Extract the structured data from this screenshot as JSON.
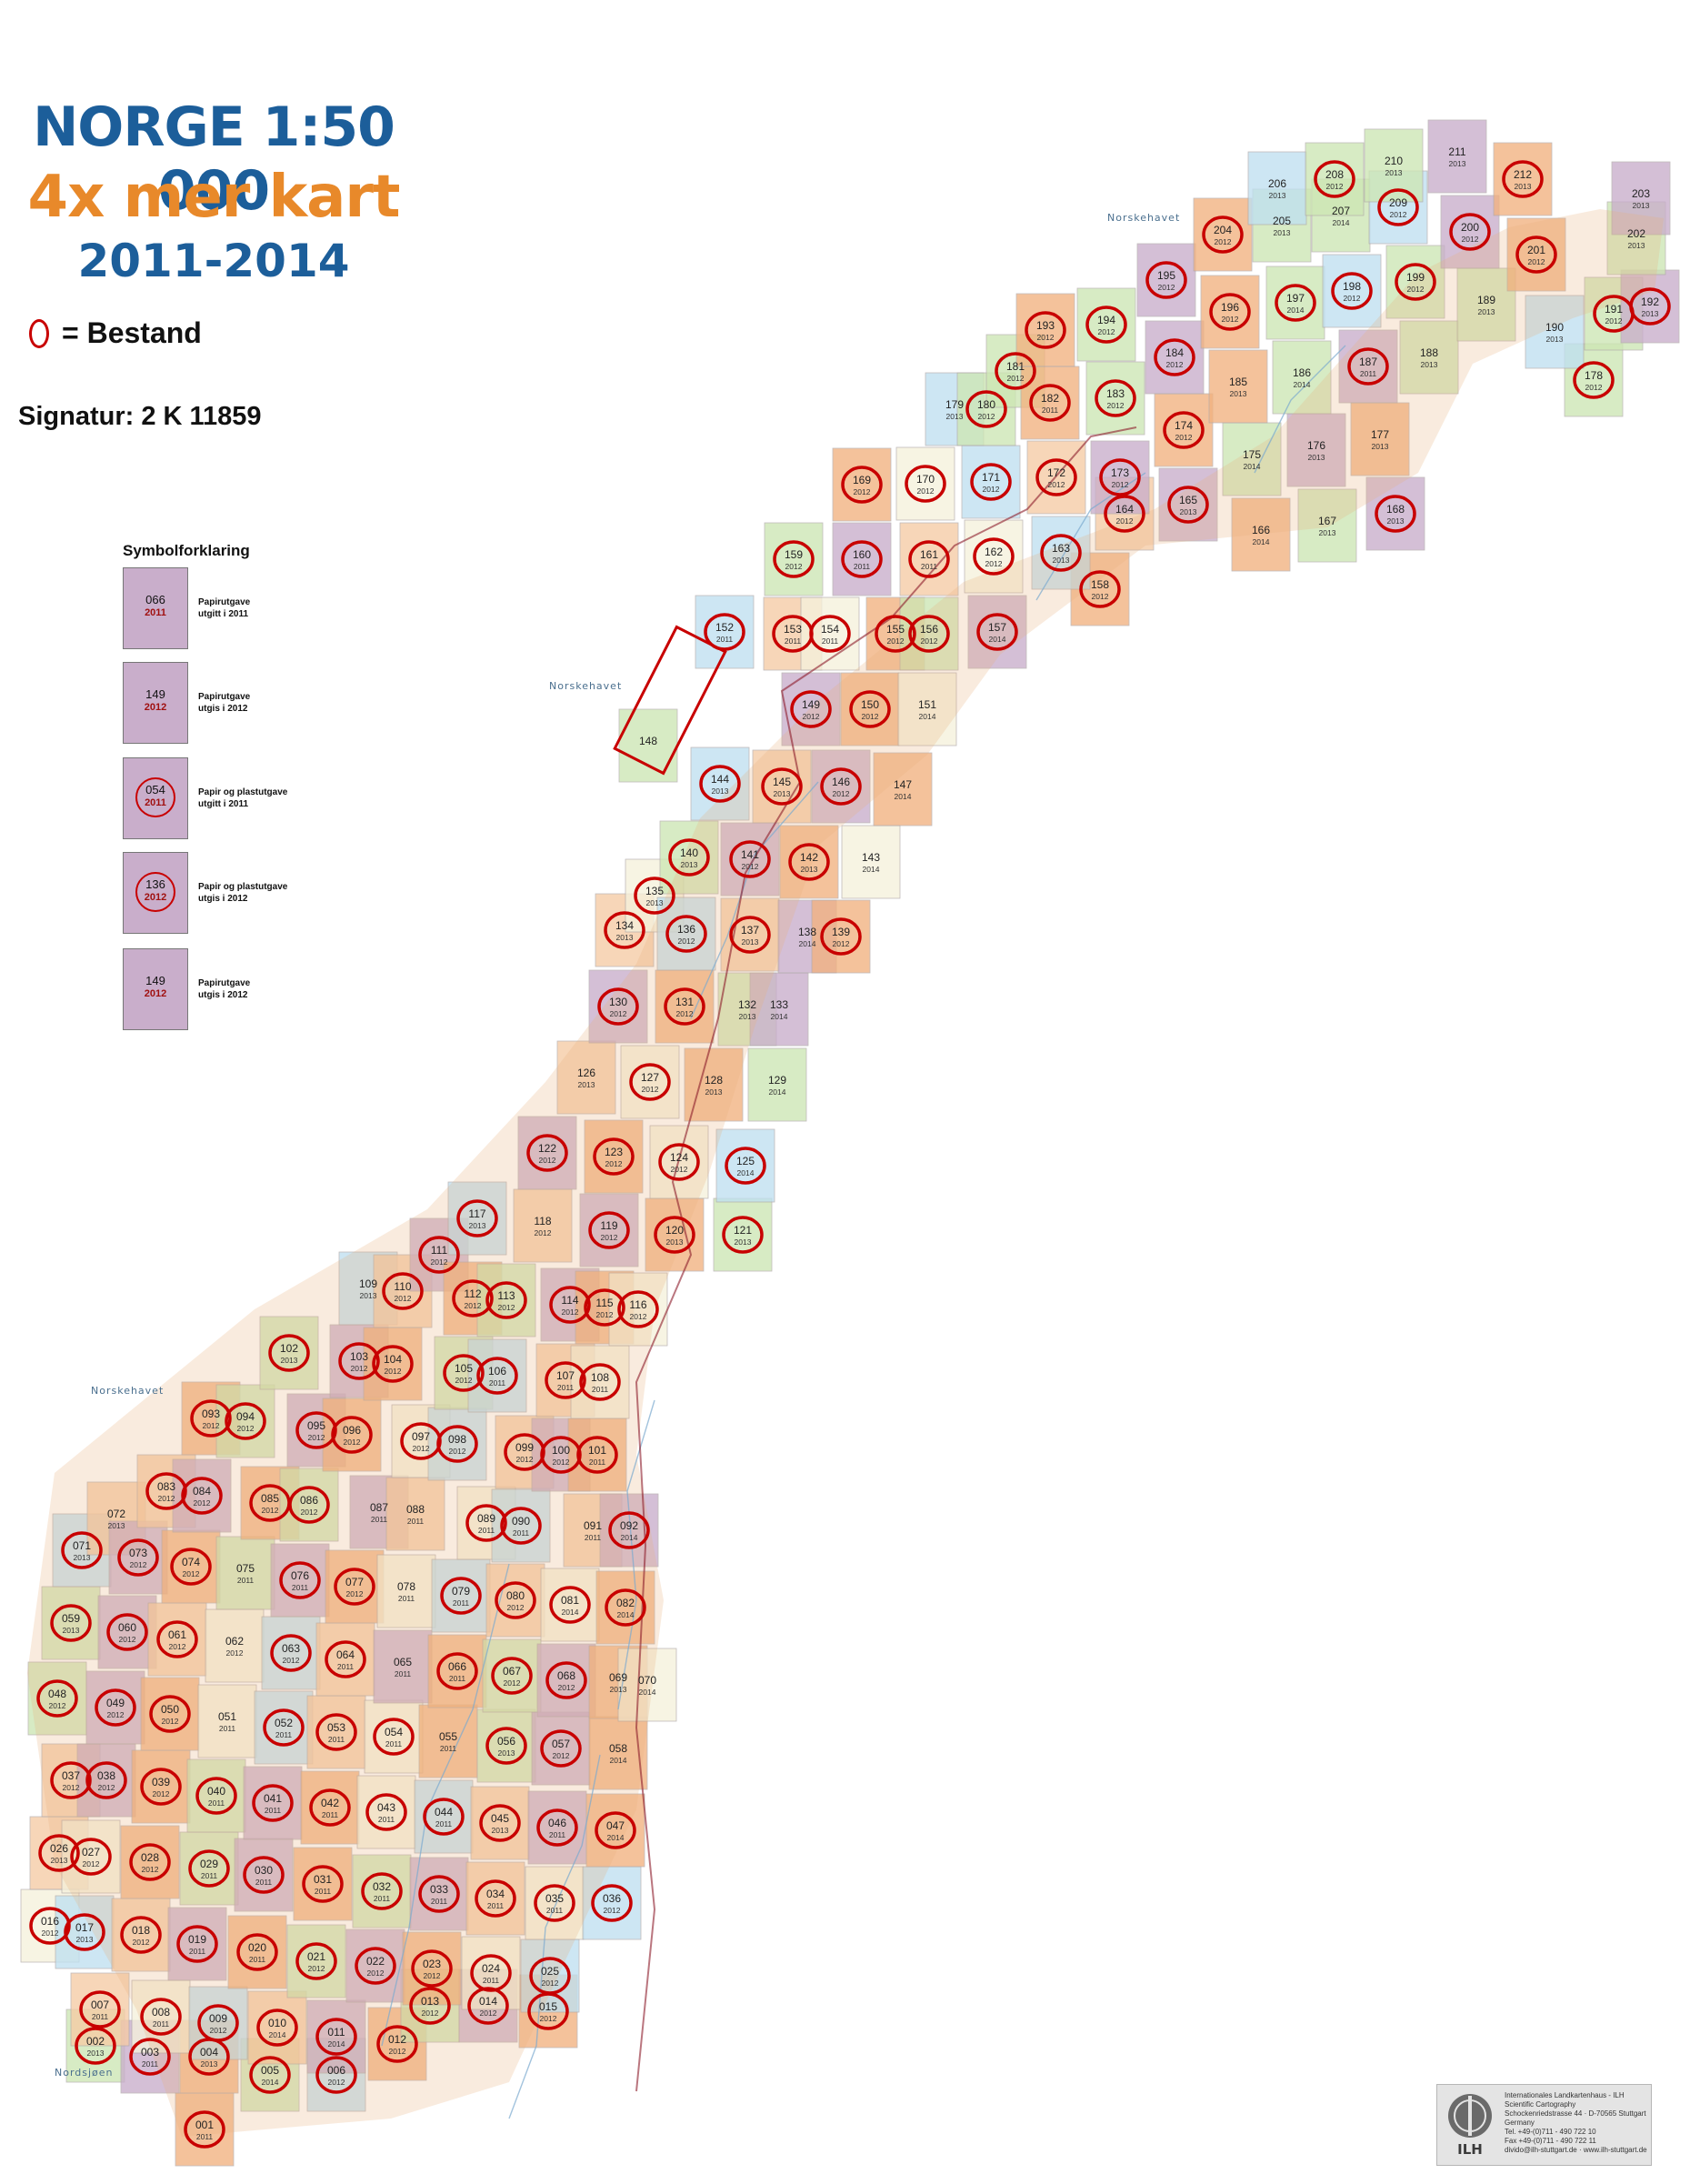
{
  "title": {
    "line1": "NORGE 1:50 000",
    "line2": "4x mer kart",
    "line3": "2011-2014"
  },
  "bestand_label": "= Bestand",
  "signatur": "Signatur: 2 K 11859",
  "legend": {
    "title": "Symbolforklaring",
    "items": [
      {
        "num": "066",
        "year": "2011",
        "ring": false,
        "text": [
          "Papirutgave",
          "utgitt i 2011"
        ]
      },
      {
        "num": "149",
        "year": "2012",
        "ring": false,
        "text": [
          "Papirutgave",
          "utgis i 2012"
        ]
      },
      {
        "num": "054",
        "year": "2011",
        "ring": true,
        "text": [
          "Papir og plastutgave",
          "utgitt i 2011"
        ]
      },
      {
        "num": "136",
        "year": "2012",
        "ring": true,
        "text": [
          "Papir og plastutgave",
          "utgis i 2012"
        ]
      },
      {
        "num": "149",
        "year": "2012",
        "ring": false,
        "text": [
          "Papirutgave",
          "utgis i 2012"
        ]
      }
    ]
  },
  "sea_labels": [
    "Norskehavet",
    "Norskehavet",
    "Norskehavet",
    "Nordsjøen"
  ],
  "publisher": {
    "lines": [
      "Internationales Landkartenhaus - ILH",
      "Scientific Cartography",
      "Schockenriedstrasse 44 · D-70565 Stuttgart",
      "Germany",
      "Tel. +49-(0)711 - 490 722 10",
      "Fax +49-(0)711 - 490 722 11",
      "divido@ilh-stuttgart.de · www.ilh-stuttgart.de"
    ],
    "logo_text": "ILH"
  },
  "colors": {
    "bestand_ring": "#c80000",
    "title_blue": "#1c5e9a",
    "title_orange": "#e8892a",
    "tile_purple": "#c9aecb",
    "tile_blue": "#bfe0f0",
    "tile_green": "#cde6b4",
    "tile_orange": "#f2b27f",
    "tile_peach": "#f6cba5",
    "tile_cream": "#f5f1dc"
  },
  "map_sheets": [
    {
      "n": "001",
      "y": "2011",
      "b": true
    },
    {
      "n": "002",
      "y": "2013",
      "b": true
    },
    {
      "n": "003",
      "y": "2011",
      "b": true
    },
    {
      "n": "004",
      "y": "2013",
      "b": true
    },
    {
      "n": "005",
      "y": "2014",
      "b": true
    },
    {
      "n": "006",
      "y": "2012",
      "b": true
    },
    {
      "n": "007",
      "y": "2011",
      "b": true
    },
    {
      "n": "008",
      "y": "2011",
      "b": true
    },
    {
      "n": "009",
      "y": "2012",
      "b": true
    },
    {
      "n": "010",
      "y": "2014",
      "b": true
    },
    {
      "n": "011",
      "y": "2014",
      "b": true
    },
    {
      "n": "012",
      "y": "2012",
      "b": true
    },
    {
      "n": "013",
      "y": "2012",
      "b": true
    },
    {
      "n": "014",
      "y": "2012",
      "b": true
    },
    {
      "n": "015",
      "y": "2012",
      "b": true
    },
    {
      "n": "016",
      "y": "2012",
      "b": true
    },
    {
      "n": "017",
      "y": "2013",
      "b": true
    },
    {
      "n": "018",
      "y": "2012",
      "b": true
    },
    {
      "n": "019",
      "y": "2011",
      "b": true
    },
    {
      "n": "020",
      "y": "2011",
      "b": true
    },
    {
      "n": "021",
      "y": "2012",
      "b": true
    },
    {
      "n": "022",
      "y": "2012",
      "b": true
    },
    {
      "n": "023",
      "y": "2012",
      "b": true
    },
    {
      "n": "024",
      "y": "2011",
      "b": true
    },
    {
      "n": "025",
      "y": "2012",
      "b": true
    },
    {
      "n": "026",
      "y": "2013",
      "b": true
    },
    {
      "n": "027",
      "y": "2012",
      "b": true
    },
    {
      "n": "028",
      "y": "2012",
      "b": true
    },
    {
      "n": "029",
      "y": "2011",
      "b": true
    },
    {
      "n": "030",
      "y": "2011",
      "b": true
    },
    {
      "n": "031",
      "y": "2011",
      "b": true
    },
    {
      "n": "032",
      "y": "2011",
      "b": true
    },
    {
      "n": "033",
      "y": "2011",
      "b": true
    },
    {
      "n": "034",
      "y": "2011",
      "b": true
    },
    {
      "n": "035",
      "y": "2011",
      "b": true
    },
    {
      "n": "036",
      "y": "2012",
      "b": true
    },
    {
      "n": "037",
      "y": "2012",
      "b": true
    },
    {
      "n": "038",
      "y": "2012",
      "b": true
    },
    {
      "n": "039",
      "y": "2012",
      "b": true
    },
    {
      "n": "040",
      "y": "2011",
      "b": true
    },
    {
      "n": "041",
      "y": "2011",
      "b": true
    },
    {
      "n": "042",
      "y": "2011",
      "b": true
    },
    {
      "n": "043",
      "y": "2011",
      "b": true
    },
    {
      "n": "044",
      "y": "2011",
      "b": true
    },
    {
      "n": "045",
      "y": "2013",
      "b": true
    },
    {
      "n": "046",
      "y": "2011",
      "b": true
    },
    {
      "n": "047",
      "y": "2014",
      "b": true
    },
    {
      "n": "048",
      "y": "2012",
      "b": true
    },
    {
      "n": "049",
      "y": "2012",
      "b": true
    },
    {
      "n": "050",
      "y": "2012",
      "b": true
    },
    {
      "n": "051",
      "y": "2011",
      "b": false
    },
    {
      "n": "052",
      "y": "2011",
      "b": true
    },
    {
      "n": "053",
      "y": "2011",
      "b": true
    },
    {
      "n": "054",
      "y": "2011",
      "b": true
    },
    {
      "n": "055",
      "y": "2011",
      "b": false
    },
    {
      "n": "056",
      "y": "2013",
      "b": true
    },
    {
      "n": "057",
      "y": "2012",
      "b": true
    },
    {
      "n": "058",
      "y": "2014",
      "b": false
    },
    {
      "n": "059",
      "y": "2013",
      "b": true
    },
    {
      "n": "060",
      "y": "2012",
      "b": true
    },
    {
      "n": "061",
      "y": "2012",
      "b": true
    },
    {
      "n": "062",
      "y": "2012",
      "b": false
    },
    {
      "n": "063",
      "y": "2012",
      "b": true
    },
    {
      "n": "064",
      "y": "2011",
      "b": true
    },
    {
      "n": "065",
      "y": "2011",
      "b": false
    },
    {
      "n": "066",
      "y": "2011",
      "b": true
    },
    {
      "n": "067",
      "y": "2012",
      "b": true
    },
    {
      "n": "068",
      "y": "2012",
      "b": true
    },
    {
      "n": "069",
      "y": "2013",
      "b": false
    },
    {
      "n": "070",
      "y": "2014",
      "b": false
    },
    {
      "n": "071",
      "y": "2013",
      "b": true
    },
    {
      "n": "072",
      "y": "2013",
      "b": false
    },
    {
      "n": "073",
      "y": "2012",
      "b": true
    },
    {
      "n": "074",
      "y": "2012",
      "b": true
    },
    {
      "n": "075",
      "y": "2011",
      "b": false
    },
    {
      "n": "076",
      "y": "2011",
      "b": true
    },
    {
      "n": "077",
      "y": "2012",
      "b": true
    },
    {
      "n": "078",
      "y": "2011",
      "b": false
    },
    {
      "n": "079",
      "y": "2011",
      "b": true
    },
    {
      "n": "080",
      "y": "2012",
      "b": true
    },
    {
      "n": "081",
      "y": "2014",
      "b": true
    },
    {
      "n": "082",
      "y": "2014",
      "b": true
    },
    {
      "n": "083",
      "y": "2012",
      "b": true
    },
    {
      "n": "084",
      "y": "2012",
      "b": true
    },
    {
      "n": "085",
      "y": "2012",
      "b": true
    },
    {
      "n": "086",
      "y": "2012",
      "b": true
    },
    {
      "n": "087",
      "y": "2011",
      "b": false
    },
    {
      "n": "088",
      "y": "2011",
      "b": false
    },
    {
      "n": "089",
      "y": "2011",
      "b": true
    },
    {
      "n": "090",
      "y": "2011",
      "b": true
    },
    {
      "n": "091",
      "y": "2011",
      "b": false
    },
    {
      "n": "092",
      "y": "2014",
      "b": true
    },
    {
      "n": "093",
      "y": "2012",
      "b": true
    },
    {
      "n": "094",
      "y": "2012",
      "b": true
    },
    {
      "n": "095",
      "y": "2012",
      "b": true
    },
    {
      "n": "096",
      "y": "2012",
      "b": true
    },
    {
      "n": "097",
      "y": "2012",
      "b": true
    },
    {
      "n": "098",
      "y": "2012",
      "b": true
    },
    {
      "n": "099",
      "y": "2012",
      "b": true
    },
    {
      "n": "100",
      "y": "2012",
      "b": true
    },
    {
      "n": "101",
      "y": "2011",
      "b": true
    },
    {
      "n": "102",
      "y": "2013",
      "b": true
    },
    {
      "n": "103",
      "y": "2012",
      "b": true
    },
    {
      "n": "104",
      "y": "2012",
      "b": true
    },
    {
      "n": "105",
      "y": "2012",
      "b": true
    },
    {
      "n": "106",
      "y": "2011",
      "b": true
    },
    {
      "n": "107",
      "y": "2011",
      "b": true
    },
    {
      "n": "108",
      "y": "2011",
      "b": true
    },
    {
      "n": "109",
      "y": "2013",
      "b": false
    },
    {
      "n": "110",
      "y": "2012",
      "b": true
    },
    {
      "n": "111",
      "y": "2012",
      "b": true
    },
    {
      "n": "112",
      "y": "2012",
      "b": true
    },
    {
      "n": "113",
      "y": "2012",
      "b": true
    },
    {
      "n": "114",
      "y": "2012",
      "b": true
    },
    {
      "n": "115",
      "y": "2012",
      "b": true
    },
    {
      "n": "116",
      "y": "2012",
      "b": true
    },
    {
      "n": "117",
      "y": "2013",
      "b": true
    },
    {
      "n": "118",
      "y": "2012",
      "b": false
    },
    {
      "n": "119",
      "y": "2012",
      "b": true
    },
    {
      "n": "120",
      "y": "2013",
      "b": true
    },
    {
      "n": "121",
      "y": "2013",
      "b": true
    },
    {
      "n": "122",
      "y": "2012",
      "b": true
    },
    {
      "n": "123",
      "y": "2012",
      "b": true
    },
    {
      "n": "124",
      "y": "2012",
      "b": true
    },
    {
      "n": "125",
      "y": "2014",
      "b": true
    },
    {
      "n": "126",
      "y": "2013",
      "b": false
    },
    {
      "n": "127",
      "y": "2012",
      "b": true
    },
    {
      "n": "128",
      "y": "2013",
      "b": false
    },
    {
      "n": "129",
      "y": "2014",
      "b": false
    },
    {
      "n": "130",
      "y": "2012",
      "b": true
    },
    {
      "n": "131",
      "y": "2012",
      "b": true
    },
    {
      "n": "132",
      "y": "2013",
      "b": false
    },
    {
      "n": "133",
      "y": "2014",
      "b": false
    },
    {
      "n": "134",
      "y": "2013",
      "b": true
    },
    {
      "n": "135",
      "y": "2013",
      "b": true
    },
    {
      "n": "136",
      "y": "2012",
      "b": true
    },
    {
      "n": "137",
      "y": "2013",
      "b": true
    },
    {
      "n": "138",
      "y": "2014",
      "b": false
    },
    {
      "n": "139",
      "y": "2012",
      "b": true
    },
    {
      "n": "140",
      "y": "2013",
      "b": true
    },
    {
      "n": "141",
      "y": "2012",
      "b": true
    },
    {
      "n": "142",
      "y": "2013",
      "b": true
    },
    {
      "n": "143",
      "y": "2014",
      "b": false
    },
    {
      "n": "144",
      "y": "2013",
      "b": true
    },
    {
      "n": "145",
      "y": "2013",
      "b": true
    },
    {
      "n": "146",
      "y": "2012",
      "b": true
    },
    {
      "n": "147",
      "y": "2014",
      "b": false
    },
    {
      "n": "148",
      "y": "",
      "b": false
    },
    {
      "n": "149",
      "y": "2012",
      "b": true
    },
    {
      "n": "150",
      "y": "2012",
      "b": true
    },
    {
      "n": "151",
      "y": "2014",
      "b": false
    },
    {
      "n": "152",
      "y": "2011",
      "b": true
    },
    {
      "n": "153",
      "y": "2011",
      "b": true
    },
    {
      "n": "154",
      "y": "2011",
      "b": true
    },
    {
      "n": "155",
      "y": "2012",
      "b": true
    },
    {
      "n": "156",
      "y": "2012",
      "b": true
    },
    {
      "n": "157",
      "y": "2014",
      "b": true
    },
    {
      "n": "158",
      "y": "2012",
      "b": true
    },
    {
      "n": "159",
      "y": "2012",
      "b": true
    },
    {
      "n": "160",
      "y": "2011",
      "b": true
    },
    {
      "n": "161",
      "y": "2011",
      "b": true
    },
    {
      "n": "162",
      "y": "2012",
      "b": true
    },
    {
      "n": "163",
      "y": "2013",
      "b": true
    },
    {
      "n": "164",
      "y": "2012",
      "b": true
    },
    {
      "n": "165",
      "y": "2013",
      "b": true
    },
    {
      "n": "166",
      "y": "2014",
      "b": false
    },
    {
      "n": "167",
      "y": "2013",
      "b": false
    },
    {
      "n": "168",
      "y": "2013",
      "b": true
    },
    {
      "n": "169",
      "y": "2012",
      "b": true
    },
    {
      "n": "170",
      "y": "2012",
      "b": true
    },
    {
      "n": "171",
      "y": "2012",
      "b": true
    },
    {
      "n": "172",
      "y": "2012",
      "b": true
    },
    {
      "n": "173",
      "y": "2012",
      "b": true
    },
    {
      "n": "174",
      "y": "2012",
      "b": true
    },
    {
      "n": "175",
      "y": "2014",
      "b": false
    },
    {
      "n": "176",
      "y": "2013",
      "b": false
    },
    {
      "n": "177",
      "y": "2013",
      "b": false
    },
    {
      "n": "178",
      "y": "2012",
      "b": true
    },
    {
      "n": "179",
      "y": "2013",
      "b": false
    },
    {
      "n": "180",
      "y": "2012",
      "b": true
    },
    {
      "n": "181",
      "y": "2012",
      "b": true
    },
    {
      "n": "182",
      "y": "2011",
      "b": true
    },
    {
      "n": "183",
      "y": "2012",
      "b": true
    },
    {
      "n": "184",
      "y": "2012",
      "b": true
    },
    {
      "n": "185",
      "y": "2013",
      "b": false
    },
    {
      "n": "186",
      "y": "2014",
      "b": false
    },
    {
      "n": "187",
      "y": "2011",
      "b": true
    },
    {
      "n": "188",
      "y": "2013",
      "b": false
    },
    {
      "n": "189",
      "y": "2013",
      "b": false
    },
    {
      "n": "190",
      "y": "2013",
      "b": false
    },
    {
      "n": "191",
      "y": "2012",
      "b": true
    },
    {
      "n": "192",
      "y": "2013",
      "b": true
    },
    {
      "n": "193",
      "y": "2012",
      "b": true
    },
    {
      "n": "194",
      "y": "2012",
      "b": true
    },
    {
      "n": "195",
      "y": "2012",
      "b": true
    },
    {
      "n": "196",
      "y": "2012",
      "b": true
    },
    {
      "n": "197",
      "y": "2014",
      "b": true
    },
    {
      "n": "198",
      "y": "2012",
      "b": true
    },
    {
      "n": "199",
      "y": "2012",
      "b": true
    },
    {
      "n": "200",
      "y": "2012",
      "b": true
    },
    {
      "n": "201",
      "y": "2012",
      "b": true
    },
    {
      "n": "202",
      "y": "2013",
      "b": false
    },
    {
      "n": "203",
      "y": "2013",
      "b": false
    },
    {
      "n": "204",
      "y": "2012",
      "b": true
    },
    {
      "n": "205",
      "y": "2013",
      "b": false
    },
    {
      "n": "206",
      "y": "2013",
      "b": false
    },
    {
      "n": "207",
      "y": "2014",
      "b": false
    },
    {
      "n": "208",
      "y": "2012",
      "b": true
    },
    {
      "n": "209",
      "y": "2012",
      "b": true
    },
    {
      "n": "210",
      "y": "2013",
      "b": false
    },
    {
      "n": "211",
      "y": "2013",
      "b": false
    },
    {
      "n": "212",
      "y": "2013",
      "b": true
    }
  ]
}
